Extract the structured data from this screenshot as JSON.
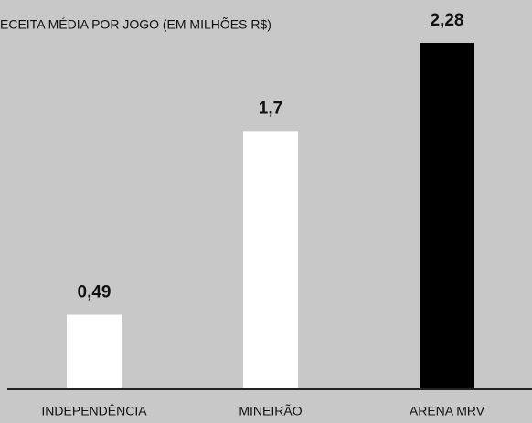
{
  "chart_data": {
    "type": "bar",
    "title": "ECEITA MÉDIA POR JOGO (EM MILHÕES R$)",
    "categories": [
      "INDEPENDÊNCIA",
      "MINEIRÃO",
      "ARENA MRV"
    ],
    "values": [
      0.49,
      1.7,
      2.28
    ],
    "value_labels": [
      "0,49",
      "1,7",
      "2,28"
    ],
    "colors": [
      "#ffffff",
      "#ffffff",
      "#000000"
    ]
  }
}
